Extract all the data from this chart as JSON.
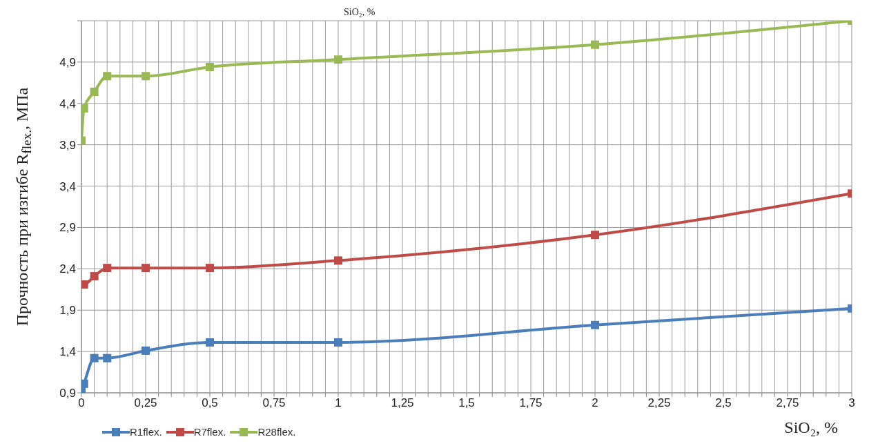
{
  "chart_data": {
    "type": "line",
    "annotations": [
      "SiO₂, %"
    ],
    "xlabel": "SiO₂, %",
    "ylabel": "Прочность при изгибе R$_{flex.}$, МПа",
    "x": [
      0,
      0.01,
      0.05,
      0.1,
      0.25,
      0.5,
      1,
      2,
      3
    ],
    "series": [
      {
        "name": "R1flex.",
        "color": "#4a7ebb",
        "values": [
          0.92,
          1.01,
          1.32,
          1.32,
          1.41,
          1.51,
          1.51,
          1.72,
          1.92
        ]
      },
      {
        "name": "R7flex.",
        "color": "#be4b48",
        "values": [
          2.21,
          2.21,
          2.31,
          2.41,
          2.41,
          2.41,
          2.5,
          2.81,
          3.31
        ]
      },
      {
        "name": "R28flex.",
        "color": "#98b954",
        "values": [
          3.95,
          4.34,
          4.54,
          4.73,
          4.73,
          4.84,
          4.93,
          5.11,
          5.4
        ]
      }
    ],
    "xlim": [
      0,
      3
    ],
    "xticks": [
      {
        "value": 0,
        "label": "0"
      },
      {
        "value": 0.05,
        "label": null
      },
      {
        "value": 0.1,
        "label": null
      },
      {
        "value": 0.15,
        "label": null
      },
      {
        "value": 0.2,
        "label": null
      },
      {
        "value": 0.25,
        "label": "0,25"
      },
      {
        "value": 0.3,
        "label": null
      },
      {
        "value": 0.35,
        "label": null
      },
      {
        "value": 0.4,
        "label": null
      },
      {
        "value": 0.45,
        "label": null
      },
      {
        "value": 0.5,
        "label": "0,5"
      },
      {
        "value": 0.55,
        "label": null
      },
      {
        "value": 0.6,
        "label": null
      },
      {
        "value": 0.65,
        "label": null
      },
      {
        "value": 0.7,
        "label": null
      },
      {
        "value": 0.75,
        "label": "0,75"
      },
      {
        "value": 0.8,
        "label": null
      },
      {
        "value": 0.85,
        "label": null
      },
      {
        "value": 0.9,
        "label": null
      },
      {
        "value": 0.95,
        "label": null
      },
      {
        "value": 1,
        "label": "1"
      },
      {
        "value": 1.05,
        "label": null
      },
      {
        "value": 1.1,
        "label": null
      },
      {
        "value": 1.15,
        "label": null
      },
      {
        "value": 1.2,
        "label": null
      },
      {
        "value": 1.25,
        "label": "1,25"
      },
      {
        "value": 1.3,
        "label": null
      },
      {
        "value": 1.35,
        "label": null
      },
      {
        "value": 1.4,
        "label": null
      },
      {
        "value": 1.45,
        "label": null
      },
      {
        "value": 1.5,
        "label": "1,5"
      },
      {
        "value": 1.55,
        "label": null
      },
      {
        "value": 1.6,
        "label": null
      },
      {
        "value": 1.65,
        "label": null
      },
      {
        "value": 1.7,
        "label": null
      },
      {
        "value": 1.75,
        "label": "1,75"
      },
      {
        "value": 1.8,
        "label": null
      },
      {
        "value": 1.85,
        "label": null
      },
      {
        "value": 1.9,
        "label": null
      },
      {
        "value": 1.95,
        "label": null
      },
      {
        "value": 2,
        "label": "2"
      },
      {
        "value": 2.05,
        "label": null
      },
      {
        "value": 2.1,
        "label": null
      },
      {
        "value": 2.15,
        "label": null
      },
      {
        "value": 2.2,
        "label": null
      },
      {
        "value": 2.25,
        "label": "2,25"
      },
      {
        "value": 2.3,
        "label": null
      },
      {
        "value": 2.35,
        "label": null
      },
      {
        "value": 2.4,
        "label": null
      },
      {
        "value": 2.45,
        "label": null
      },
      {
        "value": 2.5,
        "label": "2,5"
      },
      {
        "value": 2.55,
        "label": null
      },
      {
        "value": 2.6,
        "label": null
      },
      {
        "value": 2.65,
        "label": null
      },
      {
        "value": 2.7,
        "label": null
      },
      {
        "value": 2.75,
        "label": "2,75"
      },
      {
        "value": 2.8,
        "label": null
      },
      {
        "value": 2.85,
        "label": null
      },
      {
        "value": 2.9,
        "label": null
      },
      {
        "value": 2.95,
        "label": null
      },
      {
        "value": 3,
        "label": "3"
      }
    ],
    "ylim": [
      0.9,
      5.4
    ],
    "yticks": [
      {
        "value": 0.9,
        "label": "0,9"
      },
      {
        "value": 1.4,
        "label": "1,4"
      },
      {
        "value": 1.9,
        "label": "1,9"
      },
      {
        "value": 2.4,
        "label": "2,4"
      },
      {
        "value": 2.9,
        "label": "2,9"
      },
      {
        "value": 3.4,
        "label": "3,4"
      },
      {
        "value": 3.9,
        "label": "3,9"
      },
      {
        "value": 4.4,
        "label": "4,4"
      },
      {
        "value": 4.9,
        "label": "4,9"
      },
      {
        "value": 5.4,
        "label": null
      }
    ],
    "grid": true,
    "legend": "bottom left",
    "marker": "square",
    "line_style": "solid"
  }
}
